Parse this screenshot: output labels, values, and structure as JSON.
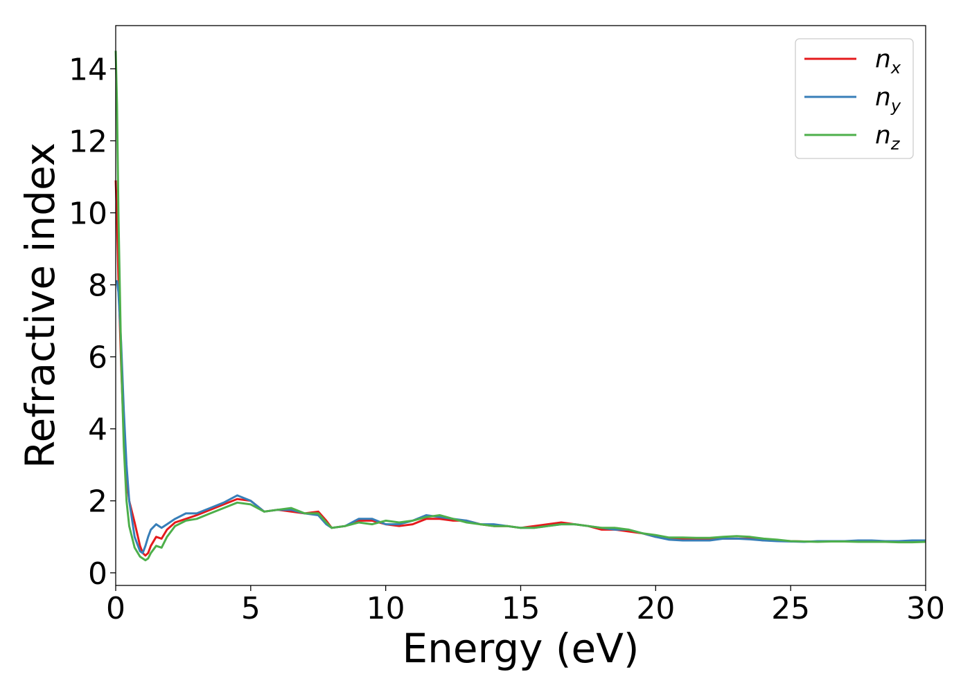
{
  "chart_data": {
    "type": "line",
    "xlabel": "Energy (eV)",
    "ylabel": "Refractive index",
    "xlim": [
      0,
      30
    ],
    "ylim": [
      -0.35,
      15.2
    ],
    "xticks": [
      0,
      5,
      10,
      15,
      20,
      25,
      30
    ],
    "xtick_labels": [
      "0",
      "5",
      "10",
      "15",
      "20",
      "25",
      "30"
    ],
    "yticks": [
      0,
      2,
      4,
      6,
      8,
      10,
      12,
      14
    ],
    "ytick_labels": [
      "0",
      "2",
      "4",
      "6",
      "8",
      "10",
      "12",
      "14"
    ],
    "grid": false,
    "legend_position": "top-right",
    "series": [
      {
        "name": "n_x",
        "legend_base": "n",
        "legend_sub": "x",
        "color": "#e41a1c",
        "x": [
          0,
          0.05,
          0.1,
          0.2,
          0.3,
          0.4,
          0.5,
          0.7,
          0.9,
          1.0,
          1.1,
          1.2,
          1.3,
          1.5,
          1.7,
          1.9,
          2.2,
          2.6,
          3.0,
          3.5,
          4.0,
          4.5,
          5.0,
          5.5,
          6.0,
          6.5,
          7.0,
          7.5,
          7.8,
          8.0,
          8.5,
          9.0,
          9.5,
          10.0,
          10.5,
          11.0,
          11.5,
          12.0,
          12.5,
          13.0,
          13.5,
          14.0,
          14.5,
          15.0,
          15.5,
          16.0,
          16.5,
          17.0,
          17.5,
          18.0,
          18.5,
          19.0,
          19.5,
          20.0,
          20.5,
          21.0,
          21.5,
          22.0,
          22.5,
          23.0,
          23.5,
          24.0,
          24.5,
          25.0,
          25.5,
          26.0,
          26.5,
          27.0,
          27.5,
          28.0,
          28.5,
          29.0,
          29.5,
          30.0
        ],
        "y": [
          10.9,
          9.8,
          8.2,
          5.8,
          3.8,
          2.6,
          2.0,
          1.4,
          0.75,
          0.55,
          0.48,
          0.55,
          0.75,
          1.0,
          0.95,
          1.2,
          1.4,
          1.5,
          1.6,
          1.75,
          1.9,
          2.05,
          2.0,
          1.7,
          1.75,
          1.7,
          1.65,
          1.7,
          1.45,
          1.25,
          1.3,
          1.45,
          1.45,
          1.35,
          1.3,
          1.35,
          1.5,
          1.5,
          1.45,
          1.45,
          1.35,
          1.3,
          1.3,
          1.25,
          1.3,
          1.35,
          1.4,
          1.35,
          1.3,
          1.2,
          1.2,
          1.15,
          1.1,
          1.0,
          0.95,
          0.95,
          0.95,
          0.95,
          0.95,
          0.95,
          0.95,
          0.9,
          0.9,
          0.88,
          0.87,
          0.87,
          0.88,
          0.88,
          0.88,
          0.88,
          0.88,
          0.87,
          0.87,
          0.88
        ]
      },
      {
        "name": "n_y",
        "legend_base": "n",
        "legend_sub": "y",
        "color": "#377eb8",
        "x": [
          0,
          0.05,
          0.1,
          0.2,
          0.3,
          0.4,
          0.5,
          0.7,
          0.9,
          1.0,
          1.1,
          1.2,
          1.3,
          1.5,
          1.7,
          1.9,
          2.2,
          2.6,
          3.0,
          3.5,
          4.0,
          4.5,
          5.0,
          5.5,
          6.0,
          6.5,
          7.0,
          7.5,
          7.8,
          8.0,
          8.5,
          9.0,
          9.5,
          10.0,
          10.5,
          11.0,
          11.5,
          12.0,
          12.5,
          13.0,
          13.5,
          14.0,
          14.5,
          15.0,
          15.5,
          16.0,
          16.5,
          17.0,
          17.5,
          18.0,
          18.5,
          19.0,
          19.5,
          20.0,
          20.5,
          21.0,
          21.5,
          22.0,
          22.5,
          23.0,
          23.5,
          24.0,
          24.5,
          25.0,
          25.5,
          26.0,
          26.5,
          27.0,
          27.5,
          28.0,
          28.5,
          29.0,
          29.5,
          30.0
        ],
        "y": [
          8.1,
          8.1,
          7.8,
          6.4,
          4.5,
          3.0,
          2.0,
          1.0,
          0.6,
          0.55,
          0.75,
          1.0,
          1.2,
          1.35,
          1.25,
          1.35,
          1.5,
          1.65,
          1.65,
          1.8,
          1.95,
          2.15,
          2.0,
          1.7,
          1.75,
          1.75,
          1.65,
          1.6,
          1.35,
          1.25,
          1.3,
          1.5,
          1.5,
          1.35,
          1.35,
          1.45,
          1.6,
          1.55,
          1.5,
          1.45,
          1.35,
          1.35,
          1.3,
          1.25,
          1.25,
          1.3,
          1.35,
          1.35,
          1.3,
          1.25,
          1.2,
          1.2,
          1.1,
          1.0,
          0.92,
          0.9,
          0.9,
          0.9,
          0.95,
          0.95,
          0.93,
          0.9,
          0.88,
          0.87,
          0.86,
          0.88,
          0.88,
          0.88,
          0.9,
          0.9,
          0.88,
          0.88,
          0.9,
          0.9
        ]
      },
      {
        "name": "n_z",
        "legend_base": "n",
        "legend_sub": "z",
        "color": "#4daf4a",
        "x": [
          0,
          0.05,
          0.1,
          0.2,
          0.3,
          0.4,
          0.5,
          0.7,
          0.9,
          1.0,
          1.1,
          1.2,
          1.3,
          1.5,
          1.7,
          1.9,
          2.2,
          2.6,
          3.0,
          3.5,
          4.0,
          4.5,
          5.0,
          5.5,
          6.0,
          6.5,
          7.0,
          7.5,
          7.8,
          8.0,
          8.5,
          9.0,
          9.5,
          10.0,
          10.5,
          11.0,
          11.5,
          12.0,
          12.5,
          13.0,
          13.5,
          14.0,
          14.5,
          15.0,
          15.5,
          16.0,
          16.5,
          17.0,
          17.5,
          18.0,
          18.5,
          19.0,
          19.5,
          20.0,
          20.5,
          21.0,
          21.5,
          22.0,
          22.5,
          23.0,
          23.5,
          24.0,
          24.5,
          25.0,
          25.5,
          26.0,
          26.5,
          27.0,
          27.5,
          28.0,
          28.5,
          29.0,
          29.5,
          30.0
        ],
        "y": [
          14.5,
          13.0,
          10.0,
          6.0,
          3.5,
          2.0,
          1.3,
          0.7,
          0.45,
          0.4,
          0.35,
          0.4,
          0.55,
          0.75,
          0.7,
          1.0,
          1.3,
          1.45,
          1.5,
          1.65,
          1.8,
          1.95,
          1.9,
          1.7,
          1.75,
          1.8,
          1.65,
          1.65,
          1.4,
          1.25,
          1.3,
          1.4,
          1.35,
          1.45,
          1.4,
          1.45,
          1.55,
          1.6,
          1.5,
          1.4,
          1.35,
          1.3,
          1.3,
          1.25,
          1.25,
          1.3,
          1.35,
          1.35,
          1.3,
          1.25,
          1.25,
          1.2,
          1.1,
          1.05,
          0.98,
          0.98,
          0.97,
          0.97,
          1.0,
          1.02,
          1.0,
          0.95,
          0.92,
          0.88,
          0.87,
          0.86,
          0.87,
          0.87,
          0.86,
          0.86,
          0.86,
          0.85,
          0.85,
          0.86
        ]
      }
    ]
  }
}
